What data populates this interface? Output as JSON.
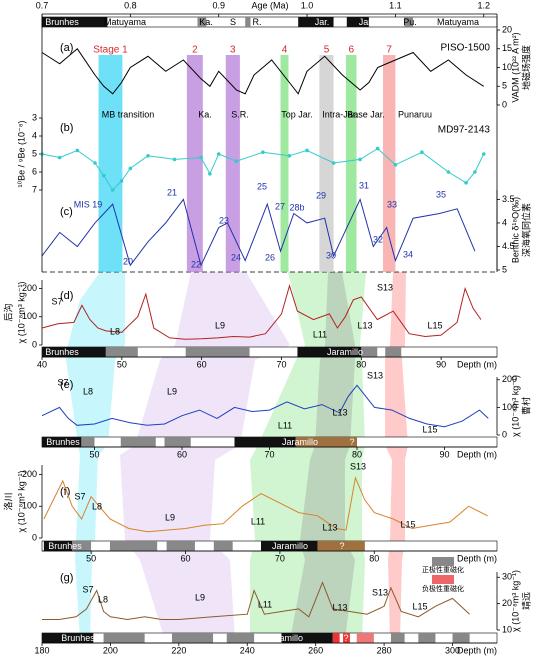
{
  "age_axis": {
    "label": "Age (Ma)",
    "xlim": [
      0.7,
      1.215
    ],
    "xticks": [
      0.7,
      0.8,
      0.9,
      {
        "value": 1,
        "label": "1.0"
      },
      1.1,
      1.2
    ],
    "polarity_labels": [
      "Brunhes",
      "Matuyama",
      "Ka.",
      "S",
      "R.",
      "Jar.",
      "Jar.",
      "Pu.",
      "Matuyama"
    ],
    "polarity_segments": [
      [
        0.7,
        0.774,
        "#111111"
      ],
      [
        0.876,
        0.886,
        "#888888"
      ],
      [
        0.93,
        0.936,
        "#888888"
      ],
      [
        0.99,
        1.03,
        "#111111"
      ],
      [
        1.045,
        1.07,
        "#111111"
      ],
      [
        1.11,
        1.12,
        "#888888"
      ]
    ]
  },
  "stages": [
    {
      "label": "Stage 1",
      "range": [
        0.764,
        0.791
      ],
      "color": "#3dd6f5"
    },
    {
      "label": "2",
      "range": [
        0.864,
        0.882
      ],
      "color": "#b77fd9"
    },
    {
      "label": "3",
      "range": [
        0.908,
        0.924
      ],
      "color": "#b77fd9"
    },
    {
      "label": "4",
      "range": [
        0.97,
        0.979
      ],
      "color": "#7fe07f"
    },
    {
      "label": "5",
      "range": [
        1.014,
        1.03
      ],
      "color": "#c8c8c8"
    },
    {
      "label": "6",
      "range": [
        1.044,
        1.056
      ],
      "color": "#7fe07f"
    },
    {
      "label": "7",
      "range": [
        1.086,
        1.1
      ],
      "color": "#f79b9b"
    }
  ],
  "events": [
    "MB transition",
    "Ka.",
    "S.R.",
    "Top Jar.",
    "Intra-Jar.",
    "Base Jar.",
    "Punaruu"
  ],
  "legend": [
    "正极性重磁化",
    "负极性重磁化"
  ],
  "chart_data": [
    {
      "type": "line",
      "label": "(a)",
      "name": "PISO-1500",
      "ylabel": "VADM (10²² A m²)",
      "ylabel_cn": "地磁场强度",
      "color": "#000000",
      "ylim": [
        0,
        20
      ],
      "yticks": [
        0,
        5,
        10,
        15,
        20
      ],
      "x": [
        0.7,
        0.72,
        0.74,
        0.76,
        0.77,
        0.78,
        0.79,
        0.8,
        0.82,
        0.84,
        0.86,
        0.88,
        0.89,
        0.9,
        0.92,
        0.93,
        0.94,
        0.96,
        0.98,
        0.99,
        1.0,
        1.02,
        1.04,
        1.06,
        1.07,
        1.08,
        1.1,
        1.12,
        1.14,
        1.16,
        1.18,
        1.2
      ],
      "values": [
        14,
        11,
        15,
        8,
        5,
        3,
        6,
        10,
        13,
        9,
        12,
        7,
        5,
        9,
        4,
        3,
        8,
        12,
        6,
        3,
        9,
        13,
        8,
        4,
        6,
        10,
        12,
        14,
        9,
        12,
        8,
        5
      ]
    },
    {
      "type": "line",
      "label": "(b)",
      "name": "MD97-2143",
      "ylabel": "¹⁰Be / ⁹Be (10⁻⁸)",
      "color": "#33cccc",
      "y_inverted": true,
      "markers": true,
      "ylim": [
        3,
        7
      ],
      "yticks": [
        3,
        4,
        5,
        6,
        7
      ],
      "x": [
        0.7,
        0.72,
        0.74,
        0.76,
        0.77,
        0.78,
        0.79,
        0.8,
        0.82,
        0.85,
        0.88,
        0.89,
        0.9,
        0.92,
        0.95,
        0.98,
        1.0,
        1.03,
        1.06,
        1.08,
        1.1,
        1.13,
        1.16,
        1.18,
        1.19,
        1.2
      ],
      "values": [
        5.0,
        5.2,
        4.8,
        5.5,
        6.2,
        7.0,
        6.5,
        5.8,
        5.1,
        5.3,
        5.2,
        6.1,
        5.0,
        5.4,
        4.9,
        5.1,
        4.8,
        5.5,
        5.3,
        4.7,
        5.6,
        4.9,
        6.0,
        6.6,
        6.0,
        5.0
      ]
    },
    {
      "type": "line",
      "label": "(c)",
      "ylabel": "Benthic δ¹⁸O(‰)",
      "ylabel_cn": "深海氧同位素",
      "color": "#2233aa",
      "y_inverted": true,
      "ylim": [
        3.3,
        5.0
      ],
      "yticks": [
        3.5,
        4,
        4.5,
        5
      ],
      "mis_labels": [
        "MIS 19",
        "20",
        "21",
        "22",
        "23",
        "24",
        "25",
        "26",
        "27",
        "28b",
        "29",
        "30",
        "31",
        "32",
        "33",
        "34",
        "35"
      ],
      "x": [
        0.7,
        0.72,
        0.74,
        0.76,
        0.78,
        0.8,
        0.82,
        0.84,
        0.86,
        0.88,
        0.9,
        0.91,
        0.93,
        0.955,
        0.97,
        0.985,
        1.0,
        1.02,
        1.03,
        1.06,
        1.075,
        1.09,
        1.1,
        1.12,
        1.15,
        1.17,
        1.19
      ],
      "values": [
        4.7,
        4.2,
        4.5,
        4.0,
        3.6,
        4.9,
        4.4,
        4.0,
        3.5,
        4.9,
        4.1,
        4.0,
        4.8,
        3.6,
        4.6,
        3.8,
        4.0,
        3.9,
        4.7,
        3.5,
        4.5,
        4.1,
        4.8,
        3.9,
        3.8,
        3.7,
        4.6
      ]
    },
    {
      "type": "line",
      "label": "(d)",
      "site": "后沟",
      "ylabel": "χ (10⁻⁸m³ kg⁻¹)",
      "xlabel": "Depth (m)",
      "color": "#b22222",
      "xlim": [
        40,
        97
      ],
      "xticks": [
        40,
        50,
        60,
        70,
        80,
        90
      ],
      "ylim": [
        0,
        230
      ],
      "yticks": [
        0,
        100,
        200
      ],
      "layer_labels": [
        "S7",
        "L8",
        "L9",
        "L11",
        "L13",
        "S13",
        "L15"
      ],
      "polarity_labels": [
        "Brunhes",
        "Jaramillo"
      ],
      "polarity_segments": [
        [
          40,
          48,
          "#111111"
        ],
        [
          48,
          52,
          "#888888"
        ],
        [
          58,
          66,
          "#888888"
        ],
        [
          72,
          80,
          "#111111"
        ],
        [
          80,
          82,
          "#888888"
        ],
        [
          83,
          85,
          "#888888"
        ]
      ],
      "x": [
        40,
        42,
        44,
        45,
        46,
        47,
        48,
        50,
        52,
        53,
        54,
        56,
        58,
        60,
        62,
        64,
        66,
        68,
        70,
        71,
        72,
        74,
        76,
        77,
        78,
        79,
        80,
        82,
        84,
        86,
        88,
        90,
        92,
        93,
        94,
        95
      ],
      "values": [
        60,
        75,
        80,
        140,
        90,
        60,
        50,
        45,
        100,
        180,
        60,
        25,
        20,
        22,
        25,
        30,
        28,
        40,
        110,
        210,
        120,
        90,
        110,
        60,
        100,
        160,
        170,
        90,
        120,
        40,
        30,
        35,
        80,
        200,
        130,
        90
      ]
    },
    {
      "type": "line",
      "label": "(e)",
      "site": "曹村",
      "ylabel": "χ (10⁻⁸m³ kg⁻¹)",
      "xlabel": "Depth (m)",
      "color": "#1f3fbf",
      "xlim": [
        44,
        96
      ],
      "xticks": [
        50,
        60,
        70,
        80,
        90
      ],
      "ylim": [
        0,
        210
      ],
      "yticks": [
        0,
        100,
        200
      ],
      "layer_labels": [
        "S7",
        "L8",
        "L9",
        "L11",
        "L13",
        "S13",
        "L15"
      ],
      "polarity_labels": [
        "Brunhes",
        "Jaramillo",
        "?"
      ],
      "polarity_segments": [
        [
          44,
          48.5,
          "#111111"
        ],
        [
          48.5,
          50,
          "#888888"
        ],
        [
          53,
          57,
          "#888888"
        ],
        [
          58,
          61,
          "#888888"
        ],
        [
          66,
          73,
          "#111111"
        ],
        [
          73,
          80,
          "#a0703f"
        ]
      ],
      "x": [
        44,
        46,
        47,
        48,
        50,
        52,
        54,
        56,
        58,
        60,
        62,
        64,
        66,
        68,
        70,
        72,
        74,
        76,
        78,
        79,
        80,
        82,
        84,
        86,
        88,
        90,
        92,
        94,
        95
      ],
      "values": [
        70,
        100,
        60,
        35,
        40,
        60,
        45,
        35,
        40,
        70,
        90,
        60,
        100,
        85,
        90,
        120,
        95,
        110,
        80,
        140,
        180,
        100,
        90,
        60,
        40,
        30,
        50,
        90,
        60
      ]
    },
    {
      "type": "line",
      "label": "(f)",
      "site": "洛川",
      "ylabel": "χ (10⁻⁸m³ kg⁻¹)",
      "xlabel": "Depth (m)",
      "color": "#d9822b",
      "xlim": [
        44.8,
        93
      ],
      "xticks": [
        50,
        60,
        70,
        80
      ],
      "ylim": [
        0,
        230
      ],
      "yticks": [
        0,
        100,
        200
      ],
      "layer_labels": [
        "S7",
        "L8",
        "L9",
        "L11",
        "L13",
        "S13",
        "L15"
      ],
      "polarity_labels": [
        "Brunhes",
        "Jaramillo",
        "?"
      ],
      "polarity_segments": [
        [
          45,
          48,
          "#111111"
        ],
        [
          48,
          50,
          "#888888"
        ],
        [
          52,
          57,
          "#888888"
        ],
        [
          58,
          61,
          "#888888"
        ],
        [
          63,
          65,
          "#888888"
        ],
        [
          68,
          74,
          "#111111"
        ],
        [
          74,
          79,
          "#a0703f"
        ]
      ],
      "x": [
        45,
        46,
        47,
        48,
        49,
        50,
        52,
        54,
        56,
        58,
        60,
        62,
        64,
        66,
        68,
        70,
        72,
        74,
        76,
        77,
        78,
        79,
        80,
        82,
        84,
        86,
        88,
        90,
        92
      ],
      "values": [
        60,
        120,
        180,
        100,
        60,
        130,
        60,
        30,
        20,
        25,
        30,
        40,
        45,
        100,
        140,
        110,
        80,
        70,
        30,
        25,
        190,
        120,
        80,
        60,
        30,
        40,
        50,
        100,
        70
      ]
    },
    {
      "type": "line",
      "label": "(g)",
      "site": "靖远",
      "ylabel": "χ (10⁻⁸m³ kg⁻¹)",
      "xlabel": "Depth (m)",
      "color": "#8b5a2b",
      "xlim": [
        180,
        313
      ],
      "xticks": [
        180,
        200,
        220,
        240,
        260,
        280,
        300
      ],
      "ylim": [
        10,
        32
      ],
      "yticks": [
        10,
        20,
        30
      ],
      "layer_labels": [
        "S7",
        "L8",
        "L9",
        "L11",
        "L13",
        "S13",
        "L15"
      ],
      "polarity_labels": [
        "Brunhes",
        "Jaramillo",
        "?"
      ],
      "polarity_segments": [
        [
          180,
          195,
          "#111111"
        ],
        [
          198,
          210,
          "#888888"
        ],
        [
          218,
          230,
          "#888888"
        ],
        [
          234,
          242,
          "#888888"
        ],
        [
          250,
          265,
          "#111111"
        ],
        [
          265,
          267,
          "#ee3333"
        ],
        [
          268,
          270,
          "#ee3333"
        ],
        [
          272,
          277,
          "#ee7777"
        ],
        [
          282,
          286,
          "#888888"
        ],
        [
          290,
          295,
          "#888888"
        ],
        [
          300,
          305,
          "#888888"
        ]
      ],
      "x": [
        180,
        185,
        190,
        193,
        196,
        198,
        200,
        205,
        210,
        215,
        220,
        230,
        240,
        242,
        245,
        250,
        255,
        258,
        262,
        265,
        270,
        275,
        280,
        282,
        285,
        290,
        295,
        300,
        305
      ],
      "values": [
        14,
        14,
        15,
        18,
        25,
        17,
        15,
        14,
        15,
        14,
        14,
        15,
        16,
        25,
        16,
        17,
        18,
        15,
        28,
        18,
        17,
        16,
        19,
        26,
        17,
        15,
        19,
        22,
        16
      ]
    }
  ]
}
